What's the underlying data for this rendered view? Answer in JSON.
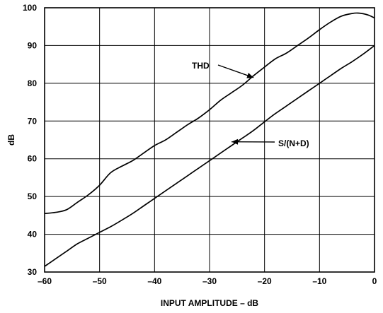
{
  "chart_data": {
    "type": "line",
    "title": "",
    "xlabel": "INPUT AMPLITUDE – dB",
    "ylabel": "dB",
    "xlim": [
      -60,
      0
    ],
    "ylim": [
      30,
      100
    ],
    "grid": true,
    "x_ticks": [
      -60,
      -50,
      -40,
      -30,
      -20,
      -10,
      0
    ],
    "x_tick_labels": [
      "–60",
      "–50",
      "–40",
      "–30",
      "–20",
      "–10",
      "0"
    ],
    "y_ticks": [
      30,
      40,
      50,
      60,
      70,
      80,
      90,
      100
    ],
    "y_tick_labels": [
      "30",
      "40",
      "50",
      "60",
      "70",
      "80",
      "90",
      "100"
    ],
    "series": [
      {
        "name": "THD",
        "x": [
          -60,
          -58,
          -56,
          -54,
          -52,
          -50,
          -48,
          -46,
          -44,
          -42,
          -40,
          -38,
          -36,
          -34,
          -32,
          -30,
          -28,
          -26,
          -24,
          -22,
          -20,
          -18,
          -16,
          -14,
          -12,
          -10,
          -8,
          -6,
          -4,
          -3,
          -2,
          -1,
          0
        ],
        "values": [
          45.5,
          45.8,
          46.5,
          48.5,
          50.5,
          53,
          56.3,
          58,
          59.5,
          61.5,
          63.5,
          65,
          67,
          69,
          70.8,
          73,
          75.5,
          77.5,
          79.5,
          82,
          84.3,
          86.5,
          88,
          90,
          92,
          94.2,
          96.2,
          97.8,
          98.5,
          98.6,
          98.4,
          98,
          97.3
        ]
      },
      {
        "name": "S/(N+D)",
        "x": [
          -60,
          -58,
          -56,
          -54,
          -52,
          -50,
          -48,
          -46,
          -44,
          -42,
          -40,
          -38,
          -36,
          -34,
          -32,
          -30,
          -28,
          -26,
          -24,
          -22,
          -20,
          -18,
          -16,
          -14,
          -12,
          -10,
          -8,
          -6,
          -4,
          -2,
          0
        ],
        "values": [
          31.5,
          33.5,
          35.5,
          37.5,
          39,
          40.5,
          42,
          43.7,
          45.5,
          47.5,
          49.5,
          51.5,
          53.5,
          55.5,
          57.5,
          59.5,
          61.5,
          63.5,
          65.5,
          67.5,
          69.8,
          72,
          74,
          76,
          78,
          80,
          82,
          84,
          85.8,
          87.8,
          90
        ]
      }
    ],
    "annotations": [
      {
        "text": "THD",
        "series": "THD",
        "arrow_to_x": -22,
        "arrow_to_y": 81.5
      },
      {
        "text": "S/(N+D)",
        "series": "S/(N+D)",
        "arrow_to_x": -26,
        "arrow_to_y": 64.5
      }
    ]
  }
}
